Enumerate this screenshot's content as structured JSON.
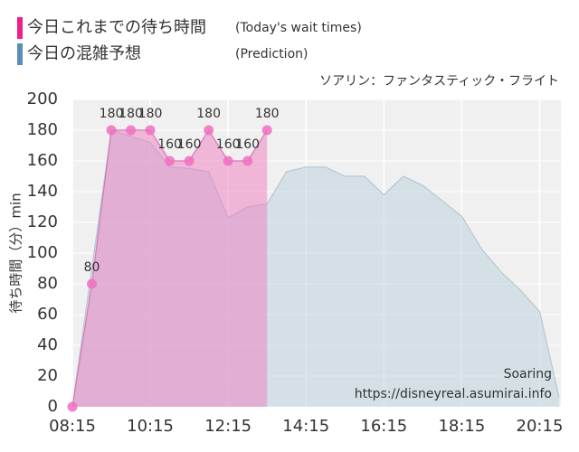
{
  "chart_data": {
    "type": "area",
    "subtitle": "ソアリン：ファンタスティック・フライト",
    "y_label": "待ち時間（分）min",
    "watermark": [
      "Soaring",
      "https://disneyreal.asumirai.info"
    ],
    "x": [
      "08:15",
      "08:45",
      "09:15",
      "09:45",
      "10:15",
      "10:45",
      "11:15",
      "11:45",
      "12:15",
      "12:45",
      "13:15",
      "13:45",
      "14:15",
      "14:45",
      "15:15",
      "15:45",
      "16:15",
      "16:45",
      "17:15",
      "17:45",
      "18:15",
      "18:45",
      "19:15",
      "19:45",
      "20:15",
      "20:45"
    ],
    "xlim": [
      "08:15",
      "20:45"
    ],
    "xticks": [
      "08:15",
      "10:15",
      "12:15",
      "14:15",
      "16:15",
      "18:15",
      "20:15"
    ],
    "ylim": [
      0,
      200
    ],
    "yticks": [
      0,
      20,
      40,
      60,
      80,
      100,
      120,
      140,
      160,
      180,
      200
    ],
    "grid": true,
    "series": [
      {
        "name": "今日の混雑予想",
        "note": "(Prediction)",
        "color": "#5b8db8",
        "fill": "#b9cfdc",
        "line": "#b4c7d4",
        "values": [
          0,
          90,
          180,
          176,
          172,
          156,
          155,
          153,
          123,
          130,
          132,
          153,
          156,
          156,
          150,
          150,
          138,
          150,
          144,
          134,
          124,
          103,
          88,
          76,
          62,
          6
        ]
      },
      {
        "name": "今日これまでの待ち時間",
        "note": "(Today's wait times)",
        "color": "#ee1e8c",
        "fill": "#f07cc0",
        "line": "#d878b8",
        "point": "#f070c0",
        "labels": true,
        "values": [
          0,
          80,
          180,
          180,
          180,
          160,
          160,
          180,
          160,
          160,
          180,
          null,
          null,
          null,
          null,
          null,
          null,
          null,
          null,
          null,
          null,
          null,
          null,
          null,
          null,
          null
        ]
      }
    ]
  }
}
